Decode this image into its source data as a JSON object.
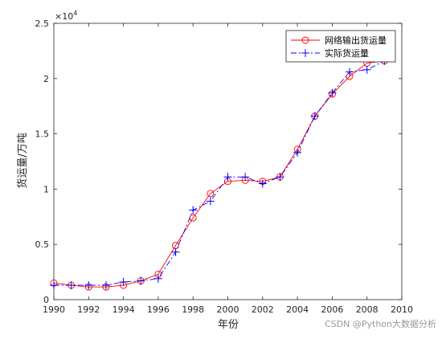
{
  "chart_data": {
    "type": "line",
    "title": "",
    "xlabel": "年份",
    "ylabel": "货运量/万吨",
    "xlim": [
      1990,
      2010
    ],
    "ylim": [
      0,
      25000
    ],
    "y_exponent_label": "×10",
    "y_exponent_power": "4",
    "x_ticks": [
      1990,
      1992,
      1994,
      1996,
      1998,
      2000,
      2002,
      2004,
      2006,
      2008,
      2010
    ],
    "x_tick_labels": [
      "1990",
      "1992",
      "1994",
      "1996",
      "1998",
      "2000",
      "2002",
      "2004",
      "2006",
      "2008",
      "2010"
    ],
    "y_ticks": [
      0,
      5000,
      10000,
      15000,
      20000,
      25000
    ],
    "y_tick_labels": [
      "0",
      "0.5",
      "1",
      "1.5",
      "2",
      "2.5"
    ],
    "grid": false,
    "legend_position": "top-right",
    "x": [
      1990,
      1991,
      1992,
      1993,
      1994,
      1995,
      1996,
      1997,
      1998,
      1999,
      2000,
      2001,
      2002,
      2003,
      2004,
      2005,
      2006,
      2007,
      2008,
      2009
    ],
    "series": [
      {
        "name": "网络输出货运量",
        "color": "#ff0000",
        "line_style": "solid",
        "marker": "circle",
        "values": [
          1500,
          1300,
          1150,
          1150,
          1300,
          1700,
          2300,
          4900,
          7400,
          9600,
          10700,
          10800,
          10700,
          11100,
          13600,
          16600,
          18600,
          20200,
          21400,
          21600
        ]
      },
      {
        "name": "实际货运量",
        "color": "#0000ff",
        "line_style": "dashdot",
        "marker": "plus",
        "values": [
          1300,
          1300,
          1300,
          1300,
          1600,
          1700,
          1900,
          4300,
          8100,
          8900,
          11100,
          11100,
          10500,
          11100,
          13300,
          16600,
          18700,
          20600,
          20800,
          21600
        ]
      }
    ]
  },
  "watermark": "CSDN @Python大数据分析"
}
